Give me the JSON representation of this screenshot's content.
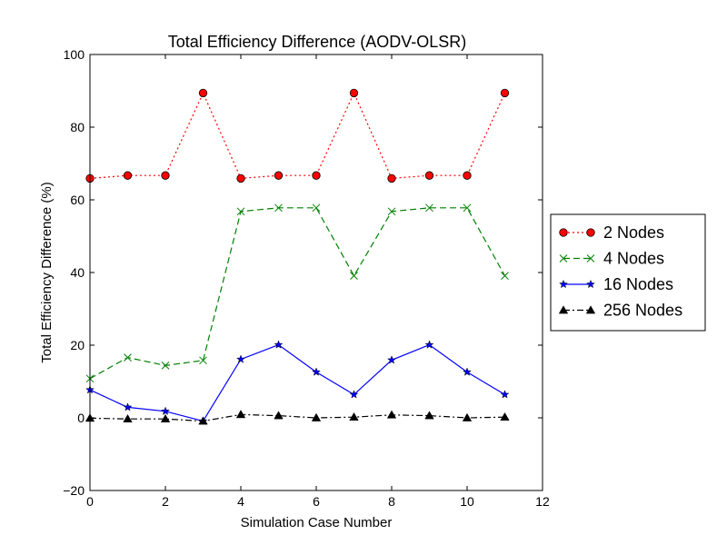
{
  "chart_data": {
    "type": "line",
    "title": "Total Efficiency Difference (AODV-OLSR)",
    "xlabel": "Simulation Case Number",
    "ylabel": "Total Efficiency Difference (%)",
    "xlim": [
      0,
      12
    ],
    "ylim": [
      -20,
      100
    ],
    "xticks": [
      0,
      2,
      4,
      6,
      8,
      10,
      12
    ],
    "yticks": [
      -20,
      0,
      20,
      40,
      60,
      80,
      100
    ],
    "grid": false,
    "legend_position": "right, outside plot",
    "x": [
      0,
      1,
      2,
      3,
      4,
      5,
      6,
      7,
      8,
      9,
      10,
      11
    ],
    "series": [
      {
        "name": "2 Nodes",
        "values": [
          65.9,
          66.7,
          66.7,
          89.4,
          65.9,
          66.7,
          66.7,
          89.4,
          65.9,
          66.7,
          66.7,
          89.4
        ],
        "color": "#ff0000",
        "line_style": "dotted",
        "marker": "circle"
      },
      {
        "name": "4 Nodes",
        "values": [
          10.8,
          16.6,
          14.4,
          15.8,
          56.8,
          57.8,
          57.8,
          39.1,
          56.8,
          57.8,
          57.8,
          39.1
        ],
        "color": "#008000",
        "line_style": "dashed",
        "marker": "x"
      },
      {
        "name": "16 Nodes",
        "values": [
          7.7,
          2.9,
          1.8,
          -0.9,
          16.1,
          20.1,
          12.6,
          6.4,
          15.9,
          20.1,
          12.6,
          6.4
        ],
        "color": "#0000ff",
        "line_style": "solid",
        "marker": "star"
      },
      {
        "name": "256 Nodes",
        "values": [
          -0.1,
          -0.3,
          -0.3,
          -0.9,
          0.9,
          0.6,
          0.0,
          0.2,
          0.8,
          0.6,
          0.0,
          0.2
        ],
        "color": "#000000",
        "line_style": "dashdot",
        "marker": "triangle"
      }
    ]
  }
}
